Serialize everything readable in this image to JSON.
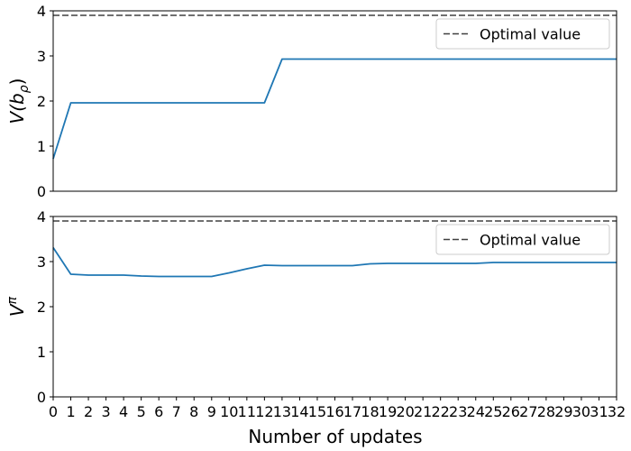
{
  "chart_data": [
    {
      "type": "line",
      "ylabel_base": "V(b",
      "ylabel_sub": "ρ",
      "ylabel_close": ")",
      "xlim": [
        0,
        32
      ],
      "ylim": [
        0,
        4
      ],
      "yticks": [
        0,
        1,
        2,
        3,
        4
      ],
      "show_xticklabels": false,
      "optimal": {
        "label": "Optimal value",
        "value": 3.9
      },
      "series": [
        {
          "color": "#1f77b4",
          "x": [
            0,
            1,
            2,
            3,
            4,
            5,
            6,
            7,
            8,
            9,
            10,
            11,
            12,
            13,
            14,
            15,
            16,
            17,
            18,
            19,
            20,
            21,
            22,
            23,
            24,
            25,
            26,
            27,
            28,
            29,
            30,
            31,
            32
          ],
          "y": [
            0.72,
            1.96,
            1.96,
            1.96,
            1.96,
            1.96,
            1.96,
            1.96,
            1.96,
            1.96,
            1.96,
            1.96,
            1.96,
            2.93,
            2.93,
            2.93,
            2.93,
            2.93,
            2.93,
            2.93,
            2.93,
            2.93,
            2.93,
            2.93,
            2.93,
            2.93,
            2.93,
            2.93,
            2.93,
            2.93,
            2.93,
            2.93,
            2.93
          ]
        }
      ],
      "legend_position": "top-right"
    },
    {
      "type": "line",
      "ylabel_base": "V",
      "ylabel_sup": "π",
      "xlim": [
        0,
        32
      ],
      "ylim": [
        0,
        4
      ],
      "yticks": [
        0,
        1,
        2,
        3,
        4
      ],
      "show_xticklabels": true,
      "xticks": [
        0,
        1,
        2,
        3,
        4,
        5,
        6,
        7,
        8,
        9,
        10,
        11,
        12,
        13,
        14,
        15,
        16,
        17,
        18,
        19,
        20,
        21,
        22,
        23,
        24,
        25,
        26,
        27,
        28,
        29,
        30,
        31,
        32
      ],
      "xlabel": "Number of updates",
      "optimal": {
        "label": "Optimal value",
        "value": 3.9
      },
      "series": [
        {
          "color": "#1f77b4",
          "x": [
            0,
            1,
            2,
            3,
            4,
            5,
            6,
            7,
            8,
            9,
            10,
            11,
            12,
            13,
            14,
            15,
            16,
            17,
            18,
            19,
            20,
            21,
            22,
            23,
            24,
            25,
            26,
            27,
            28,
            29,
            30,
            31,
            32
          ],
          "y": [
            3.31,
            2.72,
            2.7,
            2.7,
            2.7,
            2.68,
            2.67,
            2.67,
            2.67,
            2.67,
            2.75,
            2.84,
            2.92,
            2.91,
            2.91,
            2.91,
            2.91,
            2.91,
            2.95,
            2.96,
            2.96,
            2.96,
            2.96,
            2.96,
            2.96,
            2.98,
            2.98,
            2.98,
            2.98,
            2.98,
            2.98,
            2.98,
            2.98
          ]
        }
      ],
      "legend_position": "top-right"
    }
  ]
}
